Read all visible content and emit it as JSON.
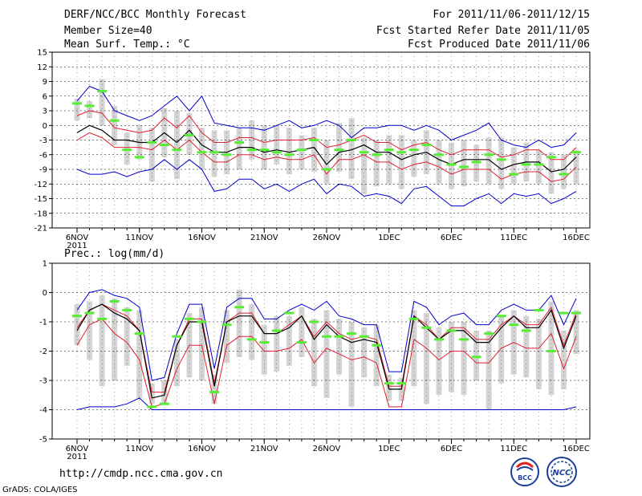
{
  "header": {
    "title": "DERF/NCC/BCC Monthly Forecast",
    "member_size": "Member Size=40",
    "variable": "Mean Surf. Temp.: °C",
    "period": "For 2011/11/06-2011/12/15",
    "started": "Fcst Started Refer Date 2011/11/05",
    "produced": "Fcst Produced Date 2011/11/06"
  },
  "footer": {
    "url": "http://cmdp.ncc.cma.gov.cn",
    "grads": "GrADS: COLA/IGES",
    "logo_bcc_text": "BCC",
    "logo_ncc_text": "NCC"
  },
  "colors": {
    "ensemble_mean": "#000000",
    "spread": "#e02030",
    "extreme": "#0000cc",
    "observed": "#55ee33",
    "member_range": "#d4d4d4",
    "grid": "#000000"
  },
  "chart_data": [
    {
      "type": "line",
      "title": "Mean Surf. Temp.: °C",
      "days": 41,
      "xticks": [
        {
          "day": 0,
          "label": "6NOV"
        },
        {
          "day": 5,
          "label": "11NOV"
        },
        {
          "day": 10,
          "label": "16NOV"
        },
        {
          "day": 15,
          "label": "21NOV"
        },
        {
          "day": 20,
          "label": "26NOV"
        },
        {
          "day": 25,
          "label": "1DEC"
        },
        {
          "day": 30,
          "label": "6DEC"
        },
        {
          "day": 35,
          "label": "11DEC"
        },
        {
          "day": 40,
          "label": "16DEC"
        }
      ],
      "year_label": "2011",
      "ylim": [
        -21,
        15
      ],
      "yticks": [
        15,
        12,
        9,
        6,
        3,
        0,
        -3,
        -6,
        -9,
        -12,
        -15,
        -18,
        -21
      ],
      "series": [
        {
          "name": "max",
          "color": "#0000cc",
          "values": [
            5,
            8,
            7,
            3,
            2,
            1,
            2,
            4,
            6,
            3,
            6,
            0.5,
            0,
            -0.5,
            -0.5,
            -1,
            0,
            1,
            -0.5,
            0,
            1,
            0,
            -2.5,
            -0.5,
            -0.5,
            0,
            0,
            -1,
            0,
            -1,
            -3,
            -2,
            -1,
            0.5,
            -3,
            -4,
            -4.5,
            -3,
            -4.5,
            -4,
            -1.5
          ]
        },
        {
          "name": "upper",
          "color": "#e02030",
          "values": [
            2,
            3,
            2.5,
            -0.5,
            -1,
            -1.5,
            -1,
            1.5,
            -0.5,
            2,
            -1.5,
            -3.5,
            -3.5,
            -2.5,
            -2.5,
            -3.5,
            -3,
            -3,
            -3,
            -2.5,
            -4.5,
            -4,
            -3,
            -2,
            -3.5,
            -3.5,
            -5,
            -4,
            -3.5,
            -5,
            -6,
            -5,
            -5,
            -5,
            -6.5,
            -6,
            -5,
            -5,
            -7,
            -7,
            -4.5
          ]
        },
        {
          "name": "mean",
          "color": "#000000",
          "values": [
            -1.5,
            0,
            -1,
            -3,
            -3,
            -3.5,
            -3.5,
            -1.5,
            -3.5,
            -1,
            -4,
            -5.5,
            -5.5,
            -4.5,
            -4.5,
            -5.5,
            -5,
            -5.5,
            -5,
            -4.5,
            -8,
            -5.5,
            -5,
            -4,
            -5.5,
            -5.5,
            -7,
            -6,
            -5.5,
            -7,
            -8,
            -7,
            -7,
            -7,
            -9,
            -8,
            -7.5,
            -7.5,
            -9.5,
            -9,
            -6.5
          ]
        },
        {
          "name": "lower",
          "color": "#e02030",
          "values": [
            -3,
            -1.5,
            -2.5,
            -4.5,
            -4.5,
            -4.5,
            -5,
            -3,
            -5,
            -3,
            -5.5,
            -7.5,
            -7.5,
            -6,
            -6,
            -7,
            -6.5,
            -7,
            -7,
            -6,
            -10,
            -7,
            -7,
            -6,
            -7.5,
            -7.5,
            -9,
            -8,
            -7.5,
            -8.5,
            -10,
            -9,
            -9,
            -9,
            -11,
            -10,
            -9.5,
            -9.5,
            -11.5,
            -11,
            -8.5
          ]
        },
        {
          "name": "min",
          "color": "#0000cc",
          "values": [
            -9,
            -10,
            -10,
            -9.5,
            -10.5,
            -9.5,
            -9,
            -7,
            -9,
            -7,
            -9,
            -13.5,
            -13,
            -11,
            -11,
            -13,
            -12,
            -13.5,
            -12,
            -11,
            -14,
            -12,
            -12.5,
            -14.5,
            -14,
            -14.5,
            -16,
            -13,
            -12.5,
            -14.5,
            -16.5,
            -16.5,
            -15,
            -14,
            -16,
            -14,
            -14.5,
            -14,
            -16,
            -15,
            -13.5
          ]
        },
        {
          "name": "member_range_top",
          "color": "#d4d4d4",
          "values": [
            5.5,
            5,
            9.5,
            4,
            -1.5,
            0,
            -0.5,
            3.5,
            3,
            2.5,
            -0.5,
            -1,
            -1,
            -0.5,
            1,
            0,
            0,
            -0.5,
            -2,
            -0.5,
            -3,
            0.5,
            1.5,
            -2.5,
            -3,
            -2,
            -2,
            -3,
            -1,
            -3,
            -3.5,
            -3,
            -4,
            -2.5,
            -2.5,
            -4.5,
            -3.5,
            -5,
            -5.5,
            -6,
            -5
          ]
        },
        {
          "name": "member_range_bottom",
          "color": "#d4d4d4",
          "values": [
            1,
            1.5,
            0,
            -4,
            -8,
            -7,
            -11.5,
            -6.5,
            -11,
            -6,
            -9,
            -10.5,
            -10,
            -9,
            -7,
            -9,
            -8,
            -10,
            -9,
            -9.5,
            -12,
            -9.5,
            -11,
            -14,
            -12.5,
            -12,
            -13,
            -10.5,
            -10,
            -12,
            -13,
            -12.5,
            -11.5,
            -12,
            -13,
            -12,
            -11.5,
            -12,
            -14,
            -13,
            -12
          ]
        },
        {
          "name": "observed",
          "color": "#55ee33",
          "values": [
            4.5,
            4,
            7,
            1,
            -5,
            -6.5,
            -3.5,
            -4,
            -5,
            -2,
            -5.5,
            -5.5,
            -6,
            -3.5,
            -5,
            -5,
            -5.5,
            -6,
            -5,
            -3,
            -9,
            -5,
            -3,
            -5.5,
            -6,
            -5,
            -5.5,
            -5,
            -4,
            -6,
            -8,
            -8.5,
            -7.5,
            -6,
            -7,
            -10,
            -8,
            -8,
            -6.5,
            -10,
            -5.5
          ]
        }
      ]
    },
    {
      "type": "line",
      "title": "Prec.: log(mm/d)",
      "days": 41,
      "xticks": [
        {
          "day": 0,
          "label": "6NOV"
        },
        {
          "day": 5,
          "label": "11NOV"
        },
        {
          "day": 10,
          "label": "16NOV"
        },
        {
          "day": 15,
          "label": "21NOV"
        },
        {
          "day": 20,
          "label": "26NOV"
        },
        {
          "day": 25,
          "label": "1DEC"
        },
        {
          "day": 30,
          "label": "6DEC"
        },
        {
          "day": 35,
          "label": "11DEC"
        },
        {
          "day": 40,
          "label": "16DEC"
        }
      ],
      "year_label": "2011",
      "ylim": [
        -5,
        1
      ],
      "yticks": [
        1,
        0,
        -1,
        -2,
        -3,
        -4,
        -5
      ],
      "series": [
        {
          "name": "max",
          "color": "#0000cc",
          "values": [
            -0.6,
            0,
            0.1,
            -0.1,
            -0.2,
            -0.5,
            -3,
            -2.9,
            -1.4,
            -0.4,
            -0.4,
            -2.6,
            -0.5,
            -0.2,
            -0.2,
            -0.9,
            -0.9,
            -0.6,
            -0.4,
            -0.6,
            -0.3,
            -0.8,
            -0.9,
            -1.1,
            -1.1,
            -2.7,
            -2.7,
            -0.3,
            -0.5,
            -1.1,
            -0.8,
            -0.7,
            -1.1,
            -1.1,
            -0.6,
            -0.4,
            -0.6,
            -0.6,
            -0.1,
            -1.1,
            -0.2
          ]
        },
        {
          "name": "upper",
          "color": "#e02030",
          "values": [
            -1.2,
            -0.6,
            -0.4,
            -0.6,
            -0.8,
            -1.3,
            -3.4,
            -3.4,
            -1.8,
            -0.9,
            -0.9,
            -3.1,
            -1,
            -0.7,
            -0.7,
            -1.4,
            -1.4,
            -1.1,
            -0.8,
            -1.5,
            -1,
            -1.4,
            -1.6,
            -1.5,
            -1.6,
            -3.2,
            -3.2,
            -0.8,
            -1.1,
            -1.6,
            -1.2,
            -1.2,
            -1.6,
            -1.6,
            -1.1,
            -0.8,
            -1.1,
            -1.1,
            -0.5,
            -1.8,
            -0.7
          ]
        },
        {
          "name": "mean",
          "color": "#000000",
          "values": [
            -1.3,
            -0.6,
            -0.4,
            -0.7,
            -0.9,
            -1.3,
            -3.6,
            -3.5,
            -1.8,
            -1,
            -1,
            -3.2,
            -1,
            -0.8,
            -0.8,
            -1.4,
            -1.4,
            -1.2,
            -0.8,
            -1.6,
            -1.1,
            -1.5,
            -1.7,
            -1.6,
            -1.7,
            -3.3,
            -3.3,
            -0.8,
            -1.2,
            -1.6,
            -1.3,
            -1.3,
            -1.7,
            -1.7,
            -1.2,
            -0.8,
            -1.2,
            -1.2,
            -0.6,
            -1.9,
            -0.8
          ]
        },
        {
          "name": "lower",
          "color": "#e02030",
          "values": [
            -1.8,
            -1.1,
            -0.9,
            -1.4,
            -1.7,
            -2.3,
            -3.9,
            -3.8,
            -2.6,
            -1.8,
            -1.8,
            -3.8,
            -1.8,
            -1.5,
            -1.5,
            -2,
            -2,
            -1.9,
            -1.6,
            -2.4,
            -1.9,
            -2.1,
            -2.3,
            -2.2,
            -2.4,
            -3.9,
            -3.9,
            -1.6,
            -1.9,
            -2.3,
            -2,
            -2,
            -2.4,
            -2.4,
            -1.9,
            -1.7,
            -1.9,
            -1.9,
            -1.4,
            -2.6,
            -1.5
          ]
        },
        {
          "name": "min",
          "color": "#0000cc",
          "values": [
            -4,
            -3.9,
            -3.9,
            -3.9,
            -3.8,
            -3.6,
            -4,
            -4,
            -4,
            -4,
            -4,
            -4,
            -4,
            -4,
            -4,
            -4,
            -4,
            -4,
            -4,
            -4,
            -4,
            -4,
            -4,
            -4,
            -4,
            -4,
            -4,
            -4,
            -4,
            -4,
            -4,
            -4,
            -4,
            -4,
            -4,
            -4,
            -4,
            -4,
            -4,
            -4,
            -3.9
          ]
        },
        {
          "name": "member_range_top",
          "color": "#d4d4d4",
          "values": [
            -0.4,
            -0.3,
            -0.1,
            -0.2,
            -0.5,
            -0.6,
            -3.1,
            -3,
            -1.6,
            -0.7,
            -0.5,
            -2.8,
            -0.6,
            0.1,
            -0.4,
            -1.1,
            -0.8,
            -0.8,
            -0.5,
            -0.9,
            -0.6,
            -0.9,
            -1,
            -1.2,
            -1.1,
            -2.8,
            -2.9,
            -0.6,
            -0.7,
            -1.2,
            -1,
            -1,
            -1.3,
            -1.3,
            -0.8,
            -0.6,
            -0.8,
            -0.9,
            -0.3,
            -1.3,
            -0.6
          ]
        },
        {
          "name": "member_range_bottom",
          "color": "#d4d4d4",
          "values": [
            -1.8,
            -2.3,
            -3.2,
            -3,
            -2.5,
            -3.6,
            -3.8,
            -3.8,
            -3.2,
            -2.9,
            -3,
            -3.8,
            -2.4,
            -2.2,
            -2.3,
            -2.8,
            -2.7,
            -2.5,
            -2.2,
            -3.2,
            -3.6,
            -2.8,
            -3.9,
            -2.9,
            -3.2,
            -3.7,
            -3.7,
            -3.2,
            -3.8,
            -3.5,
            -3.4,
            -3.5,
            -3,
            -4,
            -3.1,
            -2.8,
            -2.9,
            -3.3,
            -3.5,
            -3.3,
            -2.1
          ]
        },
        {
          "name": "observed",
          "color": "#55ee33",
          "values": [
            -0.8,
            -0.7,
            -0.9,
            -0.3,
            -0.6,
            -1.4,
            -3.9,
            -3.8,
            -1.5,
            -0.9,
            -1,
            -3.4,
            -1.1,
            -0.5,
            -1.6,
            -1.7,
            -1.3,
            -0.7,
            -1.7,
            -1,
            -1.5,
            -1.5,
            -1.4,
            -1.5,
            -1.8,
            -3.1,
            -3.1,
            -0.9,
            -1.2,
            -1.6,
            -1.3,
            -1.6,
            -2.2,
            -1.4,
            -0.8,
            -1.1,
            -1.3,
            -0.6,
            -2,
            -0.7,
            -0.7
          ]
        }
      ]
    }
  ]
}
